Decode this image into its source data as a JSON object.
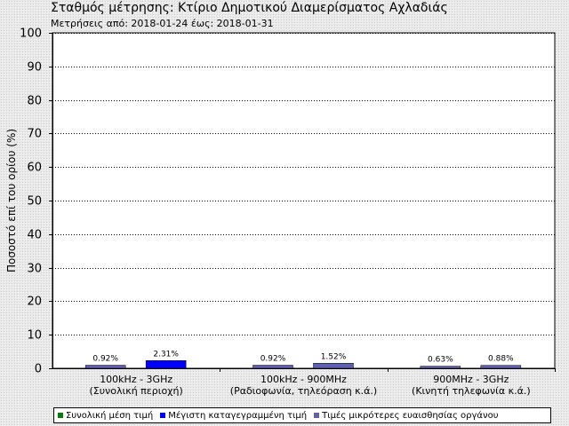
{
  "chart_data": {
    "type": "bar",
    "title": "Σταθμός μέτρησης: Κτίριο Δημοτικού Διαμερίσματος Αχλαδιάς",
    "subtitle": "Μετρήσεις από: 2018-01-24 έως: 2018-01-31",
    "ylabel": "Ποσοστό επί του ορίου (%)",
    "ylim": [
      0,
      100
    ],
    "yticks": [
      0,
      10,
      20,
      30,
      40,
      50,
      60,
      70,
      80,
      90,
      100
    ],
    "grid": true,
    "categories": [
      {
        "line1": "100kHz - 3GHz",
        "line2": "(Συνολική περιοχή)"
      },
      {
        "line1": "100kHz - 900MHz",
        "line2": "(Ραδιοφωνία, τηλεόραση κ.ά.)"
      },
      {
        "line1": "900MHz - 3GHz",
        "line2": "(Κινητή τηλεφωνία κ.ά.)"
      }
    ],
    "bars": [
      {
        "values": [
          0.92,
          0.92,
          0.63
        ],
        "labels": [
          "0.92%",
          "0.92%",
          "0.63%"
        ]
      },
      {
        "values": [
          2.31,
          1.52,
          0.88
        ],
        "labels": [
          "2.31%",
          "1.52%",
          "0.88%"
        ]
      }
    ],
    "legend": [
      {
        "name": "Συνολική μέση τιμή",
        "color": "#008000"
      },
      {
        "name": "Μέγιστη καταγεγραμμένη τιμή",
        "color": "#0000ff"
      },
      {
        "name": "Τιμές μικρότερες ευαισθησίας οργάνου",
        "color": "#6060b0"
      }
    ],
    "legend_position": "bottom",
    "colors": {
      "avg_bar": "#6060b0",
      "max_bar_low": "#6060b0",
      "max_bar_high": "#0000ff",
      "plot_bg": "#ffffff",
      "grid": "#000000"
    }
  }
}
